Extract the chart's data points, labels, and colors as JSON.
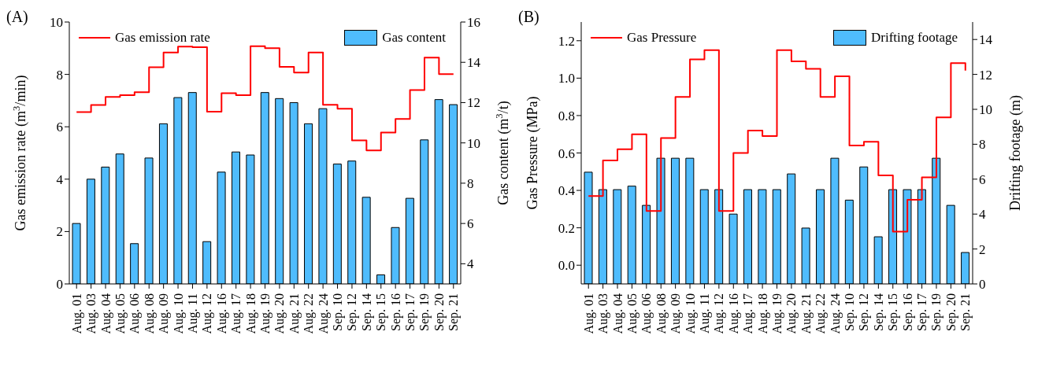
{
  "chart_data": [
    {
      "type": "bar",
      "title": "(A)",
      "ylabel": "Gas emission rate (m$^{3}$/min)",
      "y2label": "Gas content (m$^{3}$/t)",
      "categories": [
        "Aug. 01",
        "Aug. 03",
        "Aug. 04",
        "Aug. 05",
        "Aug. 06",
        "Aug. 08",
        "Aug. 09",
        "Aug. 10",
        "Aug. 11",
        "Aug. 12",
        "Aug. 16",
        "Aug. 17",
        "Aug. 18",
        "Aug. 19",
        "Aug. 20",
        "Aug. 21",
        "Aug. 22",
        "Aug. 24",
        "Sep. 10",
        "Sep. 12",
        "Sep. 14",
        "Sep. 15",
        "Sep. 16",
        "Sep. 17",
        "Sep. 19",
        "Sep. 20",
        "Sep. 21"
      ],
      "series": [
        {
          "name": "Gas emission rate",
          "type": "step",
          "color": "#ff0000",
          "values": [
            6.56,
            6.83,
            7.14,
            7.21,
            7.32,
            8.27,
            8.84,
            9.06,
            9.04,
            6.58,
            7.28,
            7.21,
            9.08,
            9.0,
            8.29,
            8.07,
            8.84,
            6.84,
            6.69,
            5.48,
            5.1,
            5.78,
            6.3,
            7.4,
            8.64,
            8.01,
            8.01
          ]
        },
        {
          "name": "Gas content",
          "axis": "y2",
          "color": "#4fbcfd",
          "values": [
            6.0,
            8.2,
            8.8,
            9.45,
            5.0,
            9.25,
            10.95,
            12.25,
            12.5,
            5.1,
            8.55,
            9.55,
            9.4,
            12.5,
            12.2,
            12.0,
            10.95,
            11.7,
            8.95,
            9.1,
            7.3,
            3.45,
            5.8,
            7.25,
            10.15,
            12.15,
            11.9
          ]
        }
      ],
      "ylim": [
        0,
        10
      ],
      "yticks": [
        0,
        2,
        4,
        6,
        8,
        10
      ],
      "y2lim": [
        3,
        16
      ],
      "y2ticks": [
        4,
        6,
        8,
        10,
        12,
        14,
        16
      ],
      "grid": false,
      "legend": "top"
    },
    {
      "type": "bar",
      "title": "(B)",
      "ylabel": "Gas Pressure (MPa)",
      "y2label": "Drifting footage (m)",
      "categories": [
        "Aug. 01",
        "Aug. 03",
        "Aug. 04",
        "Aug. 05",
        "Aug. 06",
        "Aug. 08",
        "Aug. 09",
        "Aug. 10",
        "Aug. 11",
        "Aug. 12",
        "Aug. 16",
        "Aug. 17",
        "Aug. 18",
        "Aug. 19",
        "Aug. 20",
        "Aug. 21",
        "Aug. 22",
        "Aug. 24",
        "Sep. 10",
        "Sep. 12",
        "Sep. 14",
        "Sep. 15",
        "Sep. 16",
        "Sep. 17",
        "Sep. 19",
        "Sep. 20",
        "Sep. 21"
      ],
      "series": [
        {
          "name": "Gas Pressure",
          "type": "step",
          "color": "#ff0000",
          "values": [
            0.37,
            0.56,
            0.62,
            0.7,
            0.29,
            0.68,
            0.9,
            1.1,
            1.15,
            0.29,
            0.6,
            0.72,
            0.69,
            1.15,
            1.09,
            1.05,
            0.9,
            1.01,
            0.64,
            0.66,
            0.48,
            0.18,
            0.35,
            0.47,
            0.79,
            1.08,
            1.04
          ]
        },
        {
          "name": "Drifting footage",
          "axis": "y2",
          "color": "#4fbcfd",
          "values": [
            6.4,
            5.4,
            5.4,
            5.6,
            4.5,
            7.2,
            7.2,
            7.2,
            5.4,
            5.4,
            4.0,
            5.4,
            5.4,
            5.4,
            6.3,
            3.2,
            5.4,
            7.2,
            4.8,
            6.7,
            2.7,
            5.4,
            5.4,
            5.4,
            7.2,
            4.5,
            1.8
          ]
        }
      ],
      "ylim": [
        -0.1,
        1.3
      ],
      "yticks": [
        {
          "value": 0,
          "label": "0.0"
        },
        0.2,
        0.4,
        0.6,
        0.8,
        {
          "value": 1,
          "label": "1.0"
        },
        1.2
      ],
      "y2lim": [
        0,
        15
      ],
      "y2ticks": [
        0,
        2,
        4,
        6,
        8,
        10,
        12,
        14
      ],
      "grid": false,
      "legend": "top"
    }
  ]
}
